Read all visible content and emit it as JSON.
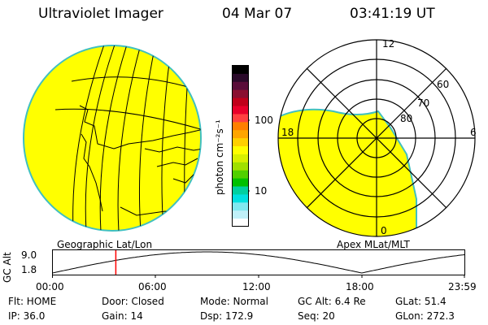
{
  "header": {
    "instrument": "Ultraviolet Imager",
    "date": "04 Mar 07",
    "time": "03:41:19 UT"
  },
  "colorbar": {
    "unit_label": "photon cm⁻²s⁻¹",
    "ticks": [
      "100",
      "10"
    ],
    "colors": [
      "#000000",
      "#2a0a2a",
      "#5a0d3a",
      "#8a0f30",
      "#c0001a",
      "#e8002a",
      "#ff4040",
      "#ff7f00",
      "#ffa500",
      "#ffd000",
      "#ffff00",
      "#d8f000",
      "#a0e000",
      "#50d000",
      "#00c000",
      "#00d0a0",
      "#00e0e0",
      "#80e8f0",
      "#c0f0f8",
      "#ffffff"
    ]
  },
  "polar_plot": {
    "mlt_labels": [
      "12",
      "18",
      "6",
      "0"
    ],
    "lat_labels": [
      "60",
      "70",
      "80"
    ]
  },
  "geo_plot": {
    "fill_color": "#ffff00",
    "edge_color": "#40c0c0"
  },
  "timeline": {
    "y_axis_label": "GC Alt",
    "y_ticks": [
      "9.0",
      "1.8"
    ],
    "left_label": "Geographic Lat/Lon",
    "right_label": "Apex MLat/MLT",
    "x_ticks": [
      "00:00",
      "06:00",
      "12:00",
      "18:00",
      "23:59"
    ],
    "marker_time": "03:41:19",
    "marker_color": "#ff0000"
  },
  "info": {
    "row1": [
      "Flt: HOME",
      "Door: Closed",
      "Mode: Normal",
      "GC Alt: 6.4 Re",
      "GLat:  51.4"
    ],
    "row2": [
      "IP: 36.0",
      "Gain: 14",
      "Dsp:  172.9",
      "Seq: 20",
      "GLon: 272.3"
    ]
  }
}
